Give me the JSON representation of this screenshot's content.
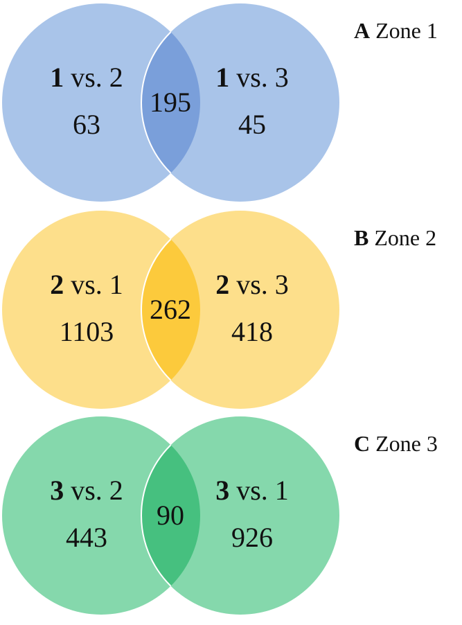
{
  "panels": [
    {
      "letter": "A",
      "title": "Zone 1",
      "left": {
        "group": "1",
        "rest": "vs. 2",
        "count": 63
      },
      "right": {
        "group": "1",
        "rest": "vs. 3",
        "count": 45
      },
      "shared": 195
    },
    {
      "letter": "B",
      "title": "Zone 2",
      "left": {
        "group": "2",
        "rest": "vs. 1",
        "count": 1103
      },
      "right": {
        "group": "2",
        "rest": "vs. 3",
        "count": 418
      },
      "shared": 262
    },
    {
      "letter": "C",
      "title": "Zone 3",
      "left": {
        "group": "3",
        "rest": "vs. 2",
        "count": 443
      },
      "right": {
        "group": "3",
        "rest": "vs. 1",
        "count": 926
      },
      "shared": 90
    }
  ]
}
